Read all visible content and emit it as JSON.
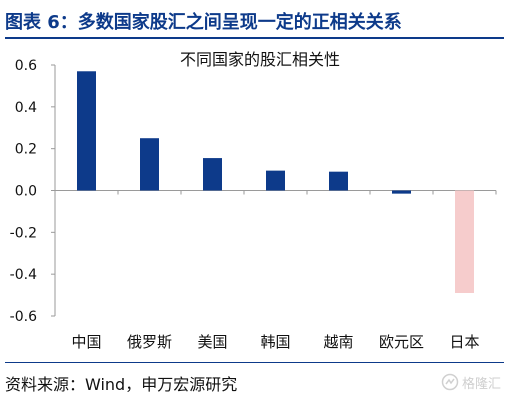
{
  "header": {
    "title": "图表 6：多数国家股汇之间呈现一定的正相关关系"
  },
  "footer": {
    "source": "资料来源：Wind，申万宏源研究"
  },
  "watermark": {
    "text": "格隆汇"
  },
  "colors": {
    "positive": "#0d3a8a",
    "negative": "#f6cccc",
    "accent": "#0d3a8a"
  },
  "chart_data": {
    "type": "bar",
    "title": "不同国家的股汇相关性",
    "categories": [
      "中国",
      "俄罗斯",
      "美国",
      "韩国",
      "越南",
      "欧元区",
      "日本"
    ],
    "values": [
      0.57,
      0.25,
      0.155,
      0.095,
      0.09,
      -0.015,
      -0.49
    ],
    "ylim": [
      -0.6,
      0.6
    ],
    "yticks": [
      "0.6",
      "0.4",
      "0.2",
      "0.0",
      "-0.2",
      "-0.4",
      "-0.6"
    ],
    "grid": false,
    "legend": "none"
  }
}
